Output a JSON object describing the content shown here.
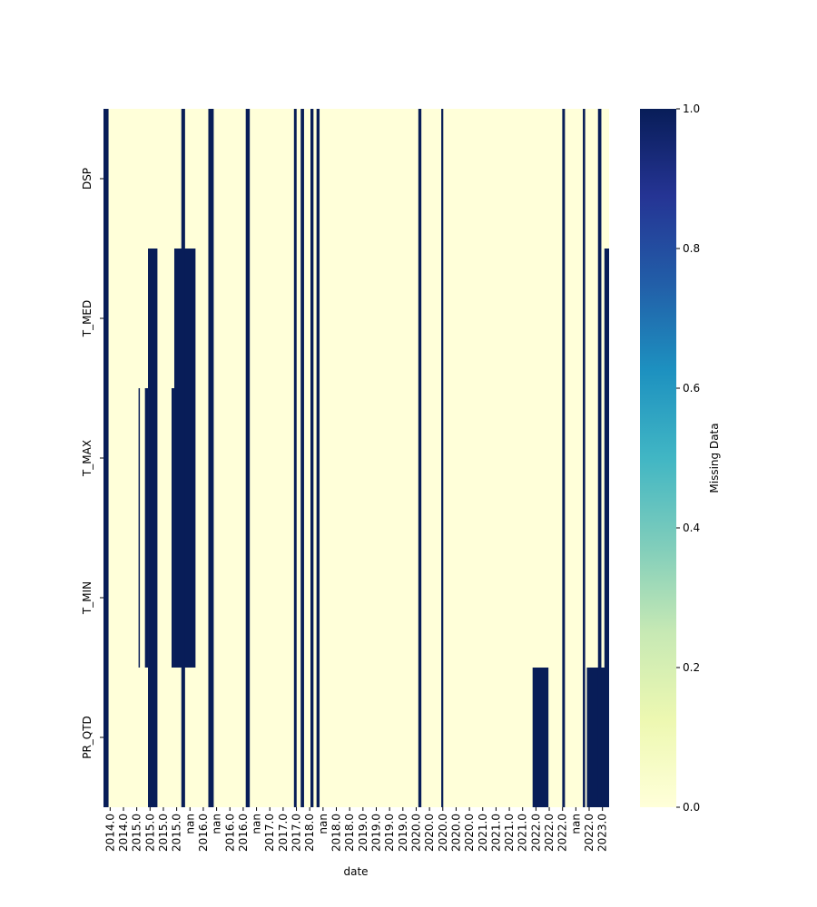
{
  "chart_data": {
    "type": "heatmap",
    "xlabel": "date",
    "ylabel": "",
    "rows": [
      "DSP",
      "T_MED",
      "T_MAX",
      "T_MIN",
      "PR_QTD"
    ],
    "x_tick_labels": [
      "2014.0",
      "2014.0",
      "2015.0",
      "2015.0",
      "2015.0",
      "2015.0",
      "nan",
      "2016.0",
      "nan",
      "2016.0",
      "2016.0",
      "nan",
      "2017.0",
      "2017.0",
      "2017.0",
      "2018.0",
      "nan",
      "2018.0",
      "2018.0",
      "2019.0",
      "2019.0",
      "2019.0",
      "2019.0",
      "2020.0",
      "2020.0",
      "2020.0",
      "2020.0",
      "2020.0",
      "2021.0",
      "2021.0",
      "2021.0",
      "2021.0",
      "2022.0",
      "2022.0",
      "2022.0",
      "nan",
      "2022.0",
      "2023.0"
    ],
    "x_total": 150,
    "missing_blocks": [
      {
        "x0": 0,
        "x1": 1.5,
        "rows": [
          0,
          5
        ]
      },
      {
        "x0": 10.4,
        "x1": 10.8,
        "rows": [
          2,
          4
        ]
      },
      {
        "x0": 12.3,
        "x1": 13.2,
        "rows": [
          2,
          4
        ]
      },
      {
        "x0": 13.2,
        "x1": 16,
        "rows": [
          1,
          5
        ]
      },
      {
        "x0": 20.2,
        "x1": 21,
        "rows": [
          2,
          4
        ]
      },
      {
        "x0": 21,
        "x1": 27.3,
        "rows": [
          1,
          4
        ]
      },
      {
        "x0": 23.1,
        "x1": 24.2,
        "rows": [
          0,
          5
        ]
      },
      {
        "x0": 31.1,
        "x1": 32.7,
        "rows": [
          0,
          5
        ]
      },
      {
        "x0": 42.2,
        "x1": 43.4,
        "rows": [
          0,
          5
        ]
      },
      {
        "x0": 56.5,
        "x1": 57.3,
        "rows": [
          0,
          5
        ]
      },
      {
        "x0": 58.5,
        "x1": 59.5,
        "rows": [
          0,
          5
        ]
      },
      {
        "x0": 61.4,
        "x1": 62.3,
        "rows": [
          0,
          5
        ]
      },
      {
        "x0": 63.2,
        "x1": 64.1,
        "rows": [
          0,
          5
        ]
      },
      {
        "x0": 93.4,
        "x1": 94.3,
        "rows": [
          0,
          5
        ]
      },
      {
        "x0": 100.2,
        "x1": 100.8,
        "rows": [
          0,
          5
        ]
      },
      {
        "x0": 127.3,
        "x1": 132,
        "rows": [
          4,
          5
        ]
      },
      {
        "x0": 136.1,
        "x1": 136.9,
        "rows": [
          0,
          5
        ]
      },
      {
        "x0": 142.2,
        "x1": 142.9,
        "rows": [
          0,
          5
        ]
      },
      {
        "x0": 143.4,
        "x1": 150,
        "rows": [
          4,
          5
        ]
      },
      {
        "x0": 146.7,
        "x1": 147.7,
        "rows": [
          0,
          5
        ]
      },
      {
        "x0": 148.6,
        "x1": 150,
        "rows": [
          1,
          5
        ]
      }
    ],
    "colorbar": {
      "label": "Missing Data",
      "range": [
        0,
        1
      ],
      "ticks": [
        "0.0",
        "0.2",
        "0.4",
        "0.6",
        "0.8",
        "1.0"
      ],
      "colormap": "YlGnBu"
    },
    "colors": {
      "present": "#ffffd9",
      "missing": "#081d58"
    }
  }
}
